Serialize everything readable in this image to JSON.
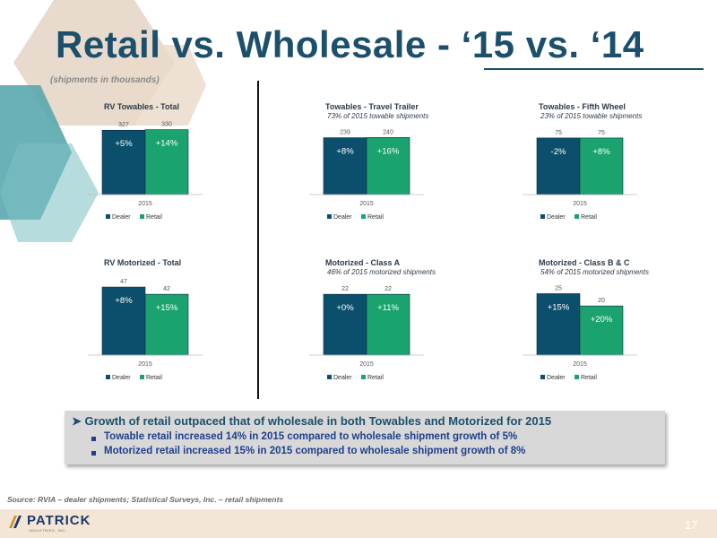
{
  "title": "Retail vs. Wholesale - ‘15 vs. ‘14",
  "subtitle": "(shipments in thousands)",
  "colors": {
    "dealer": "#0c4f6c",
    "retail": "#1aa26f",
    "title": "#1b4f6b"
  },
  "chart_data": [
    {
      "type": "bar",
      "title": "RV Towables - Total",
      "subtitle": "",
      "categories": [
        "2015"
      ],
      "series": [
        {
          "name": "Dealer",
          "values": [
            327
          ],
          "change": "+5%"
        },
        {
          "name": "Retail",
          "values": [
            330
          ],
          "change": "+14%"
        }
      ],
      "ylim": [
        0,
        360
      ]
    },
    {
      "type": "bar",
      "title": "Towables - Travel Trailer",
      "subtitle": "73% of 2015 towable shipments",
      "categories": [
        "2015"
      ],
      "series": [
        {
          "name": "Dealer",
          "values": [
            239
          ],
          "change": "+8%"
        },
        {
          "name": "Retail",
          "values": [
            240
          ],
          "change": "+16%"
        }
      ],
      "ylim": [
        0,
        260
      ]
    },
    {
      "type": "bar",
      "title": "Towables - Fifth Wheel",
      "subtitle": "23% of 2015 towable shipments",
      "categories": [
        "2015"
      ],
      "series": [
        {
          "name": "Dealer",
          "values": [
            75
          ],
          "change": "-2%"
        },
        {
          "name": "Retail",
          "values": [
            75
          ],
          "change": "+8%"
        }
      ],
      "ylim": [
        0,
        82
      ]
    },
    {
      "type": "bar",
      "title": "RV Motorized - Total",
      "subtitle": "",
      "categories": [
        "2015"
      ],
      "series": [
        {
          "name": "Dealer",
          "values": [
            47
          ],
          "change": "+8%"
        },
        {
          "name": "Retail",
          "values": [
            42
          ],
          "change": "+15%"
        }
      ],
      "ylim": [
        0,
        52
      ]
    },
    {
      "type": "bar",
      "title": "Motorized - Class A",
      "subtitle": "46% of 2015 motorized shipments",
      "categories": [
        "2015"
      ],
      "series": [
        {
          "name": "Dealer",
          "values": [
            22
          ],
          "change": "+0%"
        },
        {
          "name": "Retail",
          "values": [
            22
          ],
          "change": "+11%"
        }
      ],
      "ylim": [
        0,
        24
      ]
    },
    {
      "type": "bar",
      "title": "Motorized - Class B & C",
      "subtitle": "54% of 2015 motorized shipments",
      "categories": [
        "2015"
      ],
      "series": [
        {
          "name": "Dealer",
          "values": [
            25
          ],
          "change": "+15%"
        },
        {
          "name": "Retail",
          "values": [
            20
          ],
          "change": "+20%"
        }
      ],
      "ylim": [
        0,
        27
      ]
    }
  ],
  "callout": {
    "main": "Growth of retail outpaced that of wholesale in both Towables and Motorized for 2015",
    "bullets": [
      "Towable retail increased 14% in 2015 compared to wholesale shipment growth of 5%",
      "Motorized retail increased 15% in 2015 compared to wholesale shipment growth of 8%"
    ]
  },
  "source": "Source: RVIA – dealer shipments; Statistical Surveys, Inc. – retail shipments",
  "logo": {
    "name": "PATRICK",
    "tagline": "INDUSTRIES, INC."
  },
  "page_number": "17"
}
